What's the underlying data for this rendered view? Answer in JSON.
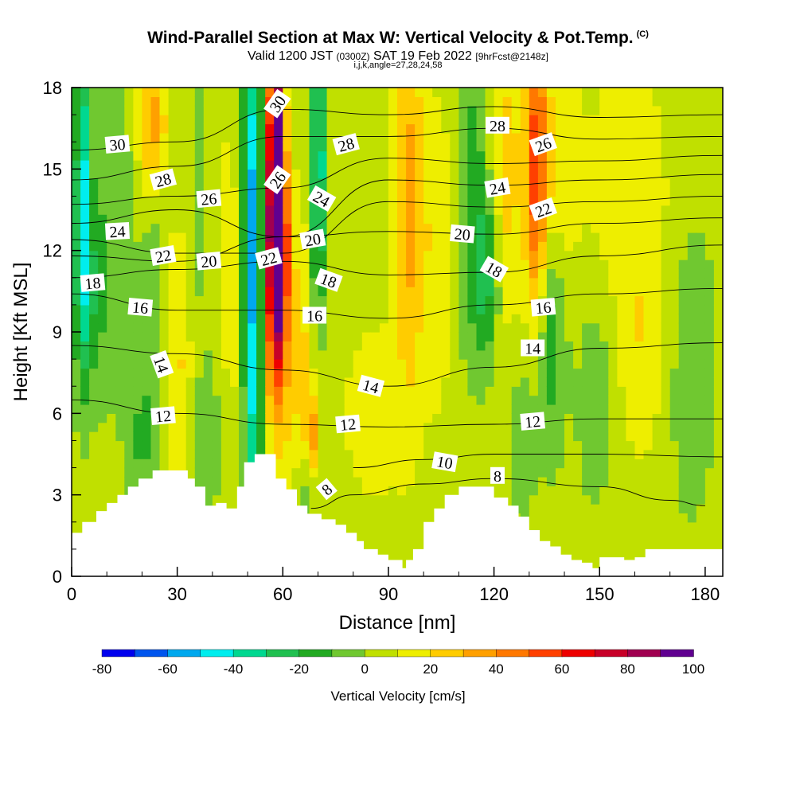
{
  "title": "Wind-Parallel Section at Max W: Vertical Velocity & Pot.Temp.",
  "copyright": "(C)",
  "subtitle_main": "Valid 1200 JST",
  "subtitle_z": "(0300Z)",
  "subtitle_date": "SAT 19 Feb 2022",
  "subtitle_fcst": "[9hrFcst@2148z]",
  "subtitle2": "i,j,k,angle=27,28,24,58",
  "chart_data": {
    "type": "heatmap",
    "xlabel": "Distance [nm]",
    "ylabel": "Height [Kft MSL]",
    "xlim": [
      0,
      185
    ],
    "ylim": [
      0,
      18
    ],
    "xticks": [
      0,
      30,
      60,
      90,
      120,
      150,
      180
    ],
    "yticks": [
      0,
      3,
      6,
      9,
      12,
      15,
      18
    ],
    "colorbar": {
      "title": "Vertical Velocity [cm/s]",
      "min": -80,
      "max": 100,
      "step": 10,
      "tick_labels": [
        "-80",
        "-60",
        "-40",
        "-20",
        "0",
        "20",
        "40",
        "60",
        "80",
        "100"
      ],
      "colors": [
        "#0000ee",
        "#0055ee",
        "#00a8ee",
        "#00eeee",
        "#00d890",
        "#20c050",
        "#22aa22",
        "#70c830",
        "#c0e000",
        "#eeee00",
        "#ffcc00",
        "#ffa000",
        "#ff7800",
        "#ff4000",
        "#ee0000",
        "#c80028",
        "#a00050",
        "#600090"
      ]
    },
    "terrain_profile": {
      "x": [
        0,
        0,
        3,
        3,
        7,
        7,
        10,
        10,
        13,
        13,
        16,
        16,
        19,
        19,
        23,
        23,
        33,
        33,
        35,
        35,
        38,
        38,
        41,
        41,
        44,
        44,
        47,
        47,
        49,
        49,
        52,
        52,
        58,
        58,
        61,
        61,
        64,
        64,
        67,
        67,
        71,
        71,
        75,
        75,
        78,
        78,
        81,
        81,
        83,
        83,
        87,
        87,
        90,
        90,
        94,
        94,
        95,
        95,
        97,
        97,
        100,
        100,
        103,
        103,
        106,
        106,
        110,
        110,
        120,
        120,
        124,
        124,
        127,
        127,
        130,
        130,
        133,
        133,
        136,
        136,
        139,
        139,
        142,
        142,
        145,
        145,
        148,
        148,
        150,
        150,
        157,
        157,
        160,
        160,
        163,
        163,
        182,
        182,
        185
      ],
      "y": [
        1.6,
        1.6,
        1.6,
        2.0,
        2.0,
        2.4,
        2.4,
        2.7,
        2.7,
        3.0,
        3.0,
        3.3,
        3.3,
        3.6,
        3.6,
        3.9,
        3.9,
        3.6,
        3.6,
        3.3,
        3.3,
        2.6,
        2.6,
        2.7,
        2.7,
        2.5,
        2.5,
        3.3,
        3.3,
        4.2,
        4.2,
        4.5,
        4.5,
        3.6,
        3.6,
        3.2,
        3.2,
        2.6,
        2.6,
        2.3,
        2.3,
        2.1,
        2.1,
        1.9,
        1.9,
        1.6,
        1.6,
        1.3,
        1.3,
        1.0,
        1.0,
        0.8,
        0.8,
        0.6,
        0.6,
        0.3,
        0.3,
        0.6,
        0.6,
        1.0,
        1.0,
        2.0,
        2.0,
        2.5,
        2.5,
        3.0,
        3.0,
        3.3,
        3.3,
        2.9,
        2.9,
        2.6,
        2.6,
        2.2,
        2.2,
        1.7,
        1.7,
        1.3,
        1.3,
        1.1,
        1.1,
        0.8,
        0.8,
        0.6,
        0.6,
        0.5,
        0.5,
        0.3,
        0.3,
        0.7,
        0.7,
        0.6,
        0.6,
        0.7,
        0.7,
        1.0,
        1.0,
        1.0,
        1.0
      ]
    },
    "w_features": [
      {
        "x": 3,
        "y": 14.5,
        "w": -45,
        "sx": 1.5,
        "sy": 4.5
      },
      {
        "x": 5,
        "y": 10.5,
        "w": -22,
        "sx": 3,
        "sy": 2.5
      },
      {
        "x": 12,
        "y": 14,
        "w": -12,
        "sx": 4,
        "sy": 5
      },
      {
        "x": 23,
        "y": 16.5,
        "w": 35,
        "sx": 3,
        "sy": 2
      },
      {
        "x": 30,
        "y": 8,
        "w": 20,
        "sx": 4,
        "sy": 4
      },
      {
        "x": 24,
        "y": 11,
        "w": -15,
        "sx": 3,
        "sy": 4
      },
      {
        "x": 36,
        "y": 12,
        "w": -10,
        "sx": 3,
        "sy": 5
      },
      {
        "x": 46,
        "y": 10,
        "w": 12,
        "sx": 4,
        "sy": 6
      },
      {
        "x": 52,
        "y": 8,
        "w": -45,
        "sx": 2.2,
        "sy": 7
      },
      {
        "x": 51,
        "y": 14,
        "w": -35,
        "sx": 2,
        "sy": 5
      },
      {
        "x": 58,
        "y": 15.5,
        "w": 95,
        "sx": 1.5,
        "sy": 4
      },
      {
        "x": 59,
        "y": 12,
        "w": 65,
        "sx": 1.8,
        "sy": 3
      },
      {
        "x": 56,
        "y": 10,
        "w": 30,
        "sx": 2.5,
        "sy": 4
      },
      {
        "x": 64,
        "y": 8,
        "w": 20,
        "sx": 4,
        "sy": 4
      },
      {
        "x": 68,
        "y": 5,
        "w": 40,
        "sx": 1.5,
        "sy": 1.2
      },
      {
        "x": 70,
        "y": 15,
        "w": -50,
        "sx": 1.5,
        "sy": 4
      },
      {
        "x": 67,
        "y": 4,
        "w": -25,
        "sx": 2,
        "sy": 1.5
      },
      {
        "x": 86,
        "y": 6,
        "w": 10,
        "sx": 8,
        "sy": 3
      },
      {
        "x": 96,
        "y": 14,
        "w": 30,
        "sx": 3,
        "sy": 5
      },
      {
        "x": 104,
        "y": 12,
        "w": 15,
        "sx": 3,
        "sy": 4
      },
      {
        "x": 114,
        "y": 14,
        "w": -20,
        "sx": 3,
        "sy": 4
      },
      {
        "x": 118,
        "y": 11,
        "w": -25,
        "sx": 2.5,
        "sy": 2
      },
      {
        "x": 124,
        "y": 15,
        "w": 20,
        "sx": 3,
        "sy": 4
      },
      {
        "x": 132,
        "y": 15,
        "w": 50,
        "sx": 2.2,
        "sy": 4
      },
      {
        "x": 136,
        "y": 9,
        "w": -22,
        "sx": 3,
        "sy": 3
      },
      {
        "x": 138,
        "y": 15,
        "w": 15,
        "sx": 4,
        "sy": 3
      },
      {
        "x": 128,
        "y": 5,
        "w": -12,
        "sx": 3,
        "sy": 2
      },
      {
        "x": 149,
        "y": 7,
        "w": -12,
        "sx": 4,
        "sy": 3
      },
      {
        "x": 162,
        "y": 8,
        "w": 12,
        "sx": 5,
        "sy": 3
      },
      {
        "x": 176,
        "y": 8,
        "w": -12,
        "sx": 5,
        "sy": 4
      },
      {
        "x": 158,
        "y": 14,
        "w": 12,
        "sx": 10,
        "sy": 4
      },
      {
        "x": 40,
        "y": 5,
        "w": -12,
        "sx": 4,
        "sy": 2
      },
      {
        "x": 20,
        "y": 5,
        "w": -15,
        "sx": 3,
        "sy": 2
      }
    ],
    "theta_contours": [
      {
        "label": "8",
        "x": [
          68,
          80,
          100,
          120,
          150,
          170,
          180
        ],
        "y": [
          2.5,
          3.0,
          3.4,
          3.6,
          3.3,
          2.8,
          2.6
        ]
      },
      {
        "label": "10",
        "x": [
          80,
          100,
          120,
          150,
          185
        ],
        "y": [
          4.0,
          4.3,
          4.5,
          4.5,
          4.4
        ]
      },
      {
        "label": "12",
        "x": [
          0,
          30,
          60,
          90,
          120,
          150,
          185
        ],
        "y": [
          6.5,
          6.0,
          5.6,
          5.5,
          5.6,
          5.8,
          5.8
        ]
      },
      {
        "label": "14",
        "x": [
          0,
          30,
          60,
          90,
          120,
          150,
          185
        ],
        "y": [
          8.5,
          8.2,
          7.6,
          7.0,
          7.7,
          8.4,
          8.6
        ]
      },
      {
        "label": "16",
        "x": [
          0,
          30,
          60,
          90,
          120,
          150,
          185
        ],
        "y": [
          10.4,
          9.8,
          9.8,
          9.5,
          10.0,
          10.4,
          10.6
        ]
      },
      {
        "label": "18",
        "x": [
          0,
          30,
          60,
          90,
          120,
          150,
          185
        ],
        "y": [
          11.0,
          11.3,
          11.6,
          11.1,
          11.2,
          11.8,
          12.2
        ]
      },
      {
        "label": "20",
        "x": [
          0,
          30,
          60,
          90,
          120,
          150,
          185
        ],
        "y": [
          11.8,
          11.6,
          12.5,
          12.7,
          12.6,
          13.0,
          13.2
        ]
      },
      {
        "label": "22",
        "x": [
          0,
          30,
          60,
          90,
          120,
          150,
          185
        ],
        "y": [
          12.4,
          11.9,
          11.9,
          13.8,
          13.6,
          13.8,
          14.0
        ]
      },
      {
        "label": "24",
        "x": [
          0,
          30,
          60,
          90,
          120,
          150,
          185
        ],
        "y": [
          13.0,
          13.5,
          12.5,
          14.6,
          14.4,
          14.6,
          14.8
        ]
      },
      {
        "label": "26",
        "x": [
          0,
          30,
          60,
          90,
          120,
          150,
          185
        ],
        "y": [
          13.7,
          14.0,
          14.3,
          15.4,
          15.2,
          15.3,
          15.5
        ]
      },
      {
        "label": "28",
        "x": [
          0,
          30,
          60,
          90,
          120,
          150,
          185
        ],
        "y": [
          14.6,
          15.1,
          16.2,
          16.2,
          16.5,
          16.1,
          16.2
        ]
      },
      {
        "label": "30",
        "x": [
          0,
          30,
          60,
          90,
          120,
          150,
          185
        ],
        "y": [
          15.7,
          16.0,
          17.2,
          17.0,
          17.3,
          16.9,
          17.0
        ]
      }
    ],
    "contour_labels": [
      {
        "text": "30",
        "x": 13,
        "y": 15.9,
        "angle": -5
      },
      {
        "text": "28",
        "x": 26,
        "y": 14.6,
        "angle": -15
      },
      {
        "text": "26",
        "x": 39,
        "y": 13.9,
        "angle": -5
      },
      {
        "text": "24",
        "x": 13,
        "y": 12.7,
        "angle": -3
      },
      {
        "text": "22",
        "x": 26,
        "y": 11.8,
        "angle": -10
      },
      {
        "text": "20",
        "x": 39,
        "y": 11.6,
        "angle": -5
      },
      {
        "text": "18",
        "x": 6,
        "y": 10.8,
        "angle": -5
      },
      {
        "text": "16",
        "x": 19.5,
        "y": 9.9,
        "angle": 5
      },
      {
        "text": "14",
        "x": 25.5,
        "y": 7.8,
        "angle": 70
      },
      {
        "text": "12",
        "x": 26,
        "y": 5.9,
        "angle": -5
      },
      {
        "text": "30",
        "x": 58.5,
        "y": 17.4,
        "angle": -55
      },
      {
        "text": "26",
        "x": 58.5,
        "y": 14.6,
        "angle": -55
      },
      {
        "text": "22",
        "x": 56,
        "y": 11.7,
        "angle": -15
      },
      {
        "text": "28",
        "x": 78,
        "y": 15.9,
        "angle": -15
      },
      {
        "text": "24",
        "x": 71,
        "y": 13.9,
        "angle": 30
      },
      {
        "text": "20",
        "x": 68.5,
        "y": 12.4,
        "angle": -10
      },
      {
        "text": "18",
        "x": 73,
        "y": 10.9,
        "angle": 20
      },
      {
        "text": "16",
        "x": 69,
        "y": 9.6,
        "angle": 0
      },
      {
        "text": "14",
        "x": 85,
        "y": 7.0,
        "angle": 15
      },
      {
        "text": "12",
        "x": 78.5,
        "y": 5.6,
        "angle": -5
      },
      {
        "text": "10",
        "x": 106,
        "y": 4.2,
        "angle": 10
      },
      {
        "text": "8",
        "x": 121,
        "y": 3.7,
        "angle": 0
      },
      {
        "text": "8",
        "x": 72.5,
        "y": 3.2,
        "angle": -40
      },
      {
        "text": "28",
        "x": 121,
        "y": 16.6,
        "angle": 0
      },
      {
        "text": "26",
        "x": 134,
        "y": 15.9,
        "angle": -20
      },
      {
        "text": "24",
        "x": 121,
        "y": 14.3,
        "angle": -10
      },
      {
        "text": "22",
        "x": 134,
        "y": 13.5,
        "angle": -20
      },
      {
        "text": "20",
        "x": 111,
        "y": 12.6,
        "angle": 5
      },
      {
        "text": "18",
        "x": 120,
        "y": 11.3,
        "angle": 30
      },
      {
        "text": "16",
        "x": 134,
        "y": 9.9,
        "angle": -5
      },
      {
        "text": "14",
        "x": 131,
        "y": 8.4,
        "angle": 0
      },
      {
        "text": "12",
        "x": 131,
        "y": 5.7,
        "angle": -5
      }
    ]
  }
}
